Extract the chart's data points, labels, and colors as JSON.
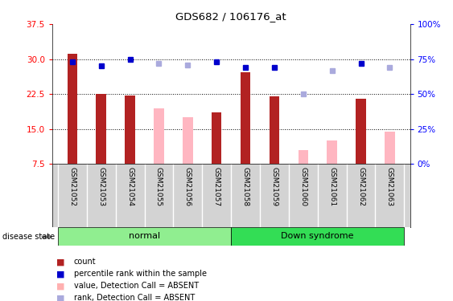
{
  "title": "GDS682 / 106176_at",
  "samples": [
    "GSM21052",
    "GSM21053",
    "GSM21054",
    "GSM21055",
    "GSM21056",
    "GSM21057",
    "GSM21058",
    "GSM21059",
    "GSM21060",
    "GSM21061",
    "GSM21062",
    "GSM21063"
  ],
  "count_values": [
    31.2,
    22.5,
    22.2,
    null,
    null,
    18.5,
    27.2,
    22.1,
    null,
    null,
    21.5,
    null
  ],
  "count_absent_values": [
    null,
    null,
    null,
    19.5,
    17.5,
    null,
    null,
    null,
    10.5,
    12.5,
    null,
    14.5
  ],
  "rank_values": [
    29.5,
    28.5,
    30.0,
    null,
    null,
    29.5,
    28.2,
    28.2,
    null,
    null,
    29.0,
    null
  ],
  "rank_absent_values": [
    null,
    null,
    null,
    29.0,
    28.8,
    null,
    null,
    null,
    22.5,
    27.5,
    null,
    28.2
  ],
  "ylim": [
    7.5,
    37.5
  ],
  "yticks": [
    7.5,
    15.0,
    22.5,
    30.0,
    37.5
  ],
  "right_ytick_labels": [
    "0%",
    "25%",
    "50%",
    "75%",
    "100%"
  ],
  "grid_lines": [
    15.0,
    22.5,
    30.0
  ],
  "normal_samples": [
    0,
    1,
    2,
    3,
    4,
    5
  ],
  "downsyndrome_samples": [
    6,
    7,
    8,
    9,
    10,
    11
  ],
  "bar_color_present": "#b22222",
  "bar_color_absent": "#ffb6c1",
  "rank_color_present": "#0000cc",
  "rank_color_absent": "#aaaadd",
  "normal_bg": "#90ee90",
  "downsyndrome_bg": "#33dd55",
  "label_bg": "#d3d3d3",
  "legend_items": [
    {
      "label": "count",
      "color": "#b22222"
    },
    {
      "label": "percentile rank within the sample",
      "color": "#0000cc"
    },
    {
      "label": "value, Detection Call = ABSENT",
      "color": "#ffb0b0"
    },
    {
      "label": "rank, Detection Call = ABSENT",
      "color": "#aaaadd"
    }
  ]
}
